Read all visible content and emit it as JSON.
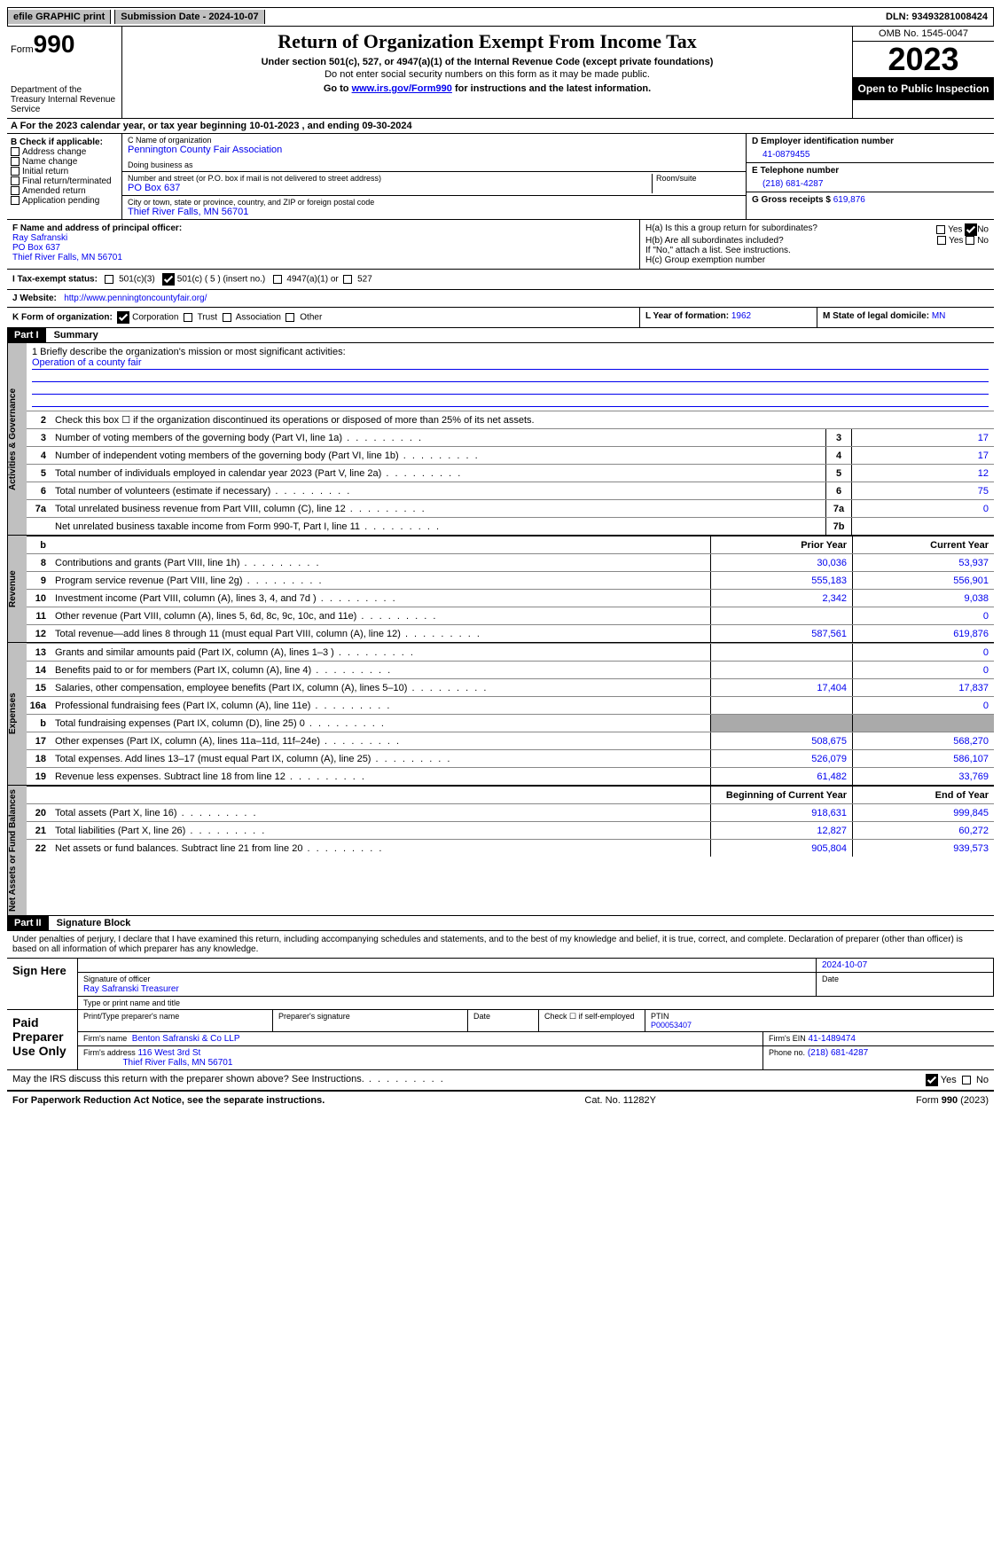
{
  "topbar": {
    "efile_btn": "efile GRAPHIC print",
    "submission_label": "Submission Date - 2024-10-07",
    "dln": "DLN: 93493281008424"
  },
  "header": {
    "form_label": "Form",
    "form_number": "990",
    "dept": "Department of the Treasury Internal Revenue Service",
    "title": "Return of Organization Exempt From Income Tax",
    "subtitle": "Under section 501(c), 527, or 4947(a)(1) of the Internal Revenue Code (except private foundations)",
    "no_ssn": "Do not enter social security numbers on this form as it may be made public.",
    "goto_prefix": "Go to ",
    "goto_link": "www.irs.gov/Form990",
    "goto_suffix": " for instructions and the latest information.",
    "omb": "OMB No. 1545-0047",
    "year": "2023",
    "open_public": "Open to Public Inspection"
  },
  "row_a": "A For the 2023 calendar year, or tax year beginning 10-01-2023   , and ending 09-30-2024",
  "box_b": {
    "label": "B Check if applicable:",
    "items": [
      "Address change",
      "Name change",
      "Initial return",
      "Final return/terminated",
      "Amended return",
      "Application pending"
    ]
  },
  "box_c": {
    "name_label": "C Name of organization",
    "name": "Pennington County Fair Association",
    "dba_label": "Doing business as",
    "dba": "",
    "street_label": "Number and street (or P.O. box if mail is not delivered to street address)",
    "room_label": "Room/suite",
    "street": "PO Box 637",
    "city_label": "City or town, state or province, country, and ZIP or foreign postal code",
    "city": "Thief River Falls, MN  56701"
  },
  "box_d": {
    "label": "D Employer identification number",
    "value": "41-0879455"
  },
  "box_e": {
    "label": "E Telephone number",
    "value": "(218) 681-4287"
  },
  "box_g": {
    "label": "G Gross receipts $",
    "value": "619,876"
  },
  "box_f": {
    "label": "F  Name and address of principal officer:",
    "name": "Ray Safranski",
    "addr1": "PO Box 637",
    "addr2": "Thief River Falls, MN  56701"
  },
  "box_h": {
    "a_label": "H(a)  Is this a group return for subordinates?",
    "a_yes": "Yes",
    "a_no": "No",
    "b_label": "H(b)  Are all subordinates included?",
    "b_note": "If \"No,\" attach a list. See instructions.",
    "c_label": "H(c)  Group exemption number"
  },
  "row_i_label": "I   Tax-exempt status:",
  "row_i_opts": {
    "a": "501(c)(3)",
    "b": "501(c) ( 5 ) (insert no.)",
    "c": "4947(a)(1) or",
    "d": "527"
  },
  "row_j": {
    "label": "J   Website:",
    "url": "http://www.penningtoncountyfair.org/"
  },
  "row_k": {
    "label": "K Form of organization:",
    "opts": [
      "Corporation",
      "Trust",
      "Association",
      "Other"
    ],
    "l_label": "L Year of formation:",
    "l_val": "1962",
    "m_label": "M State of legal domicile:",
    "m_val": "MN"
  },
  "part1": {
    "hdr": "Part I",
    "title": "Summary"
  },
  "mission_label": "1   Briefly describe the organization's mission or most significant activities:",
  "mission": "Operation of a county fair",
  "vtabs": {
    "gov": "Activities & Governance",
    "rev": "Revenue",
    "exp": "Expenses",
    "net": "Net Assets or Fund Balances"
  },
  "gov_lines": [
    {
      "n": "2",
      "t": "Check this box ☐  if the organization discontinued its operations or disposed of more than 25% of its net assets."
    },
    {
      "n": "3",
      "t": "Number of voting members of the governing body (Part VI, line 1a)",
      "box": "3",
      "v": "17"
    },
    {
      "n": "4",
      "t": "Number of independent voting members of the governing body (Part VI, line 1b)",
      "box": "4",
      "v": "17"
    },
    {
      "n": "5",
      "t": "Total number of individuals employed in calendar year 2023 (Part V, line 2a)",
      "box": "5",
      "v": "12"
    },
    {
      "n": "6",
      "t": "Total number of volunteers (estimate if necessary)",
      "box": "6",
      "v": "75"
    },
    {
      "n": "7a",
      "t": "Total unrelated business revenue from Part VIII, column (C), line 12",
      "box": "7a",
      "v": "0"
    },
    {
      "n": "",
      "t": "Net unrelated business taxable income from Form 990-T, Part I, line 11",
      "box": "7b",
      "v": ""
    }
  ],
  "col_hdrs": {
    "prefix": "b",
    "prior": "Prior Year",
    "current": "Current Year"
  },
  "rev_lines": [
    {
      "n": "8",
      "t": "Contributions and grants (Part VIII, line 1h)",
      "p": "30,036",
      "c": "53,937"
    },
    {
      "n": "9",
      "t": "Program service revenue (Part VIII, line 2g)",
      "p": "555,183",
      "c": "556,901"
    },
    {
      "n": "10",
      "t": "Investment income (Part VIII, column (A), lines 3, 4, and 7d )",
      "p": "2,342",
      "c": "9,038"
    },
    {
      "n": "11",
      "t": "Other revenue (Part VIII, column (A), lines 5, 6d, 8c, 9c, 10c, and 11e)",
      "p": "",
      "c": "0"
    },
    {
      "n": "12",
      "t": "Total revenue—add lines 8 through 11 (must equal Part VIII, column (A), line 12)",
      "p": "587,561",
      "c": "619,876"
    }
  ],
  "exp_lines": [
    {
      "n": "13",
      "t": "Grants and similar amounts paid (Part IX, column (A), lines 1–3 )",
      "p": "",
      "c": "0"
    },
    {
      "n": "14",
      "t": "Benefits paid to or for members (Part IX, column (A), line 4)",
      "p": "",
      "c": "0"
    },
    {
      "n": "15",
      "t": "Salaries, other compensation, employee benefits (Part IX, column (A), lines 5–10)",
      "p": "17,404",
      "c": "17,837"
    },
    {
      "n": "16a",
      "t": "Professional fundraising fees (Part IX, column (A), line 11e)",
      "p": "",
      "c": "0"
    },
    {
      "n": "b",
      "t": "Total fundraising expenses (Part IX, column (D), line 25) 0",
      "p": "GREY",
      "c": "GREY"
    },
    {
      "n": "17",
      "t": "Other expenses (Part IX, column (A), lines 11a–11d, 11f–24e)",
      "p": "508,675",
      "c": "568,270"
    },
    {
      "n": "18",
      "t": "Total expenses. Add lines 13–17 (must equal Part IX, column (A), line 25)",
      "p": "526,079",
      "c": "586,107"
    },
    {
      "n": "19",
      "t": "Revenue less expenses. Subtract line 18 from line 12",
      "p": "61,482",
      "c": "33,769"
    }
  ],
  "net_hdrs": {
    "beg": "Beginning of Current Year",
    "end": "End of Year"
  },
  "net_lines": [
    {
      "n": "20",
      "t": "Total assets (Part X, line 16)",
      "p": "918,631",
      "c": "999,845"
    },
    {
      "n": "21",
      "t": "Total liabilities (Part X, line 26)",
      "p": "12,827",
      "c": "60,272"
    },
    {
      "n": "22",
      "t": "Net assets or fund balances. Subtract line 21 from line 20",
      "p": "905,804",
      "c": "939,573"
    }
  ],
  "part2": {
    "hdr": "Part II",
    "title": "Signature Block"
  },
  "perjury": "Under penalties of perjury, I declare that I have examined this return, including accompanying schedules and statements, and to the best of my knowledge and belief, it is true, correct, and complete. Declaration of preparer (other than officer) is based on all information of which preparer has any knowledge.",
  "sign": {
    "here": "Sign Here",
    "sig_officer_label": "Signature of officer",
    "date_label": "Date",
    "date": "2024-10-07",
    "name_title": "Ray Safranski  Treasurer",
    "typeprint_label": "Type or print name and title"
  },
  "paid": {
    "label": "Paid Preparer Use Only",
    "prep_name_label": "Print/Type preparer's name",
    "prep_sig_label": "Preparer's signature",
    "date_label": "Date",
    "selfemp_label": "Check ☐ if self-employed",
    "ptin_label": "PTIN",
    "ptin": "P00053407",
    "firm_name_label": "Firm's name",
    "firm_name": "Benton Safranski & Co LLP",
    "firm_ein_label": "Firm's EIN",
    "firm_ein": "41-1489474",
    "firm_addr_label": "Firm's address",
    "firm_addr1": "116 West 3rd St",
    "firm_addr2": "Thief River Falls, MN  56701",
    "phone_label": "Phone no.",
    "phone": "(218) 681-4287"
  },
  "discuss": {
    "q": "May the IRS discuss this return with the preparer shown above? See Instructions.",
    "yes": "Yes",
    "no": "No"
  },
  "footer": {
    "left": "For Paperwork Reduction Act Notice, see the separate instructions.",
    "mid": "Cat. No. 11282Y",
    "right": "Form 990 (2023)"
  },
  "colors": {
    "link": "#0000ee",
    "grey": "#c0c0c0",
    "greycell": "#aaaaaa",
    "black": "#000000"
  }
}
